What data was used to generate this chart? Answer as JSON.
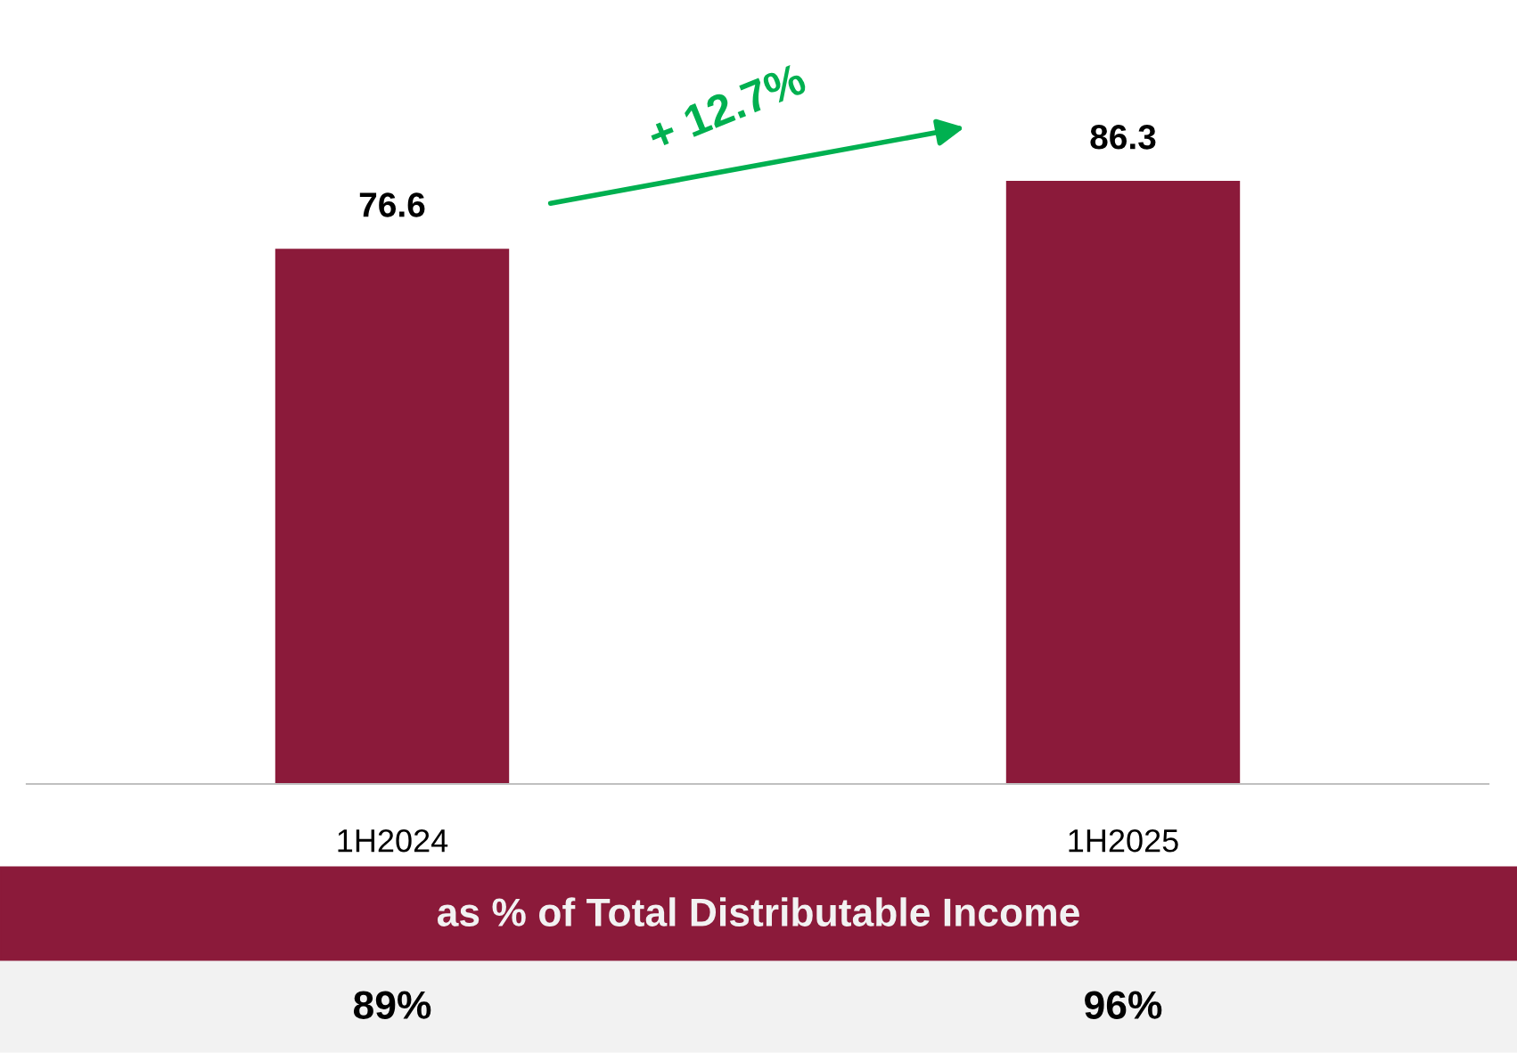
{
  "chart_data": {
    "type": "bar",
    "categories": [
      "1H2024",
      "1H2025"
    ],
    "values": [
      76.6,
      86.3
    ],
    "color": "#8b1a3a",
    "data_labels": true,
    "tick_labels": "x",
    "grid": false,
    "annotations": [
      "+ 12.7%",
      "as % of Total Distributable Income",
      "89%",
      "96%"
    ]
  }
}
